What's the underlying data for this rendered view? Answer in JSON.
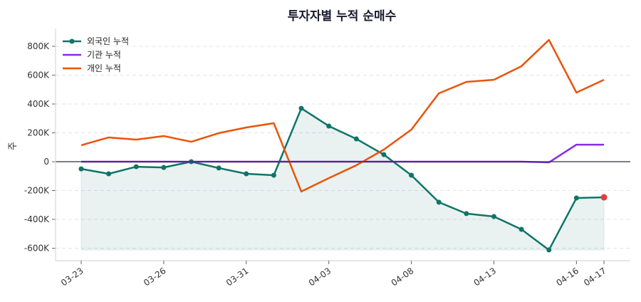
{
  "chart_data": {
    "type": "line",
    "title": "투자자별 누적 순매수",
    "ylabel": "주",
    "xlabel": "",
    "x": [
      "03-23",
      "03-24",
      "03-25",
      "03-26",
      "03-27",
      "03-30",
      "03-31",
      "04-01",
      "04-02",
      "04-03",
      "04-06",
      "04-07",
      "04-08",
      "04-09",
      "04-10",
      "04-13",
      "04-14",
      "04-15",
      "04-16",
      "04-17"
    ],
    "xticks": [
      "03-23",
      "03-26",
      "03-31",
      "04-03",
      "04-08",
      "04-13",
      "04-16",
      "04-17"
    ],
    "ylim": [
      -680000,
      920000
    ],
    "yticks": [
      -600000,
      -400000,
      -200000,
      0,
      200000,
      400000,
      600000,
      800000
    ],
    "ytick_labels": [
      "-600K",
      "-400K",
      "-200K",
      "0",
      "200K",
      "400K",
      "600K",
      "800K"
    ],
    "grid": true,
    "legend": "top-left",
    "series": [
      {
        "name": "외국인 누적",
        "color": "#0f7468",
        "markers": true,
        "fill": true,
        "last_marker_color": "#e53e3e",
        "values": [
          -50000,
          -84000,
          -35000,
          -40000,
          0,
          -44000,
          -84000,
          -94000,
          370000,
          247000,
          158000,
          49000,
          -94000,
          -281000,
          -360000,
          -380000,
          -469000,
          -612000,
          -252000,
          -247000
        ]
      },
      {
        "name": "기관 누적",
        "color": "#8a2be2",
        "markers": false,
        "values": [
          0,
          0,
          0,
          0,
          0,
          0,
          0,
          0,
          0,
          0,
          0,
          0,
          0,
          0,
          0,
          0,
          0,
          -5000,
          118000,
          118000
        ]
      },
      {
        "name": "개인 누적",
        "color": "#e8540a",
        "markers": false,
        "values": [
          114000,
          168000,
          153000,
          178000,
          138000,
          198000,
          237000,
          267000,
          -207000,
          -114000,
          -25000,
          84000,
          222000,
          474000,
          553000,
          568000,
          662000,
          844000,
          479000,
          568000
        ]
      }
    ]
  }
}
